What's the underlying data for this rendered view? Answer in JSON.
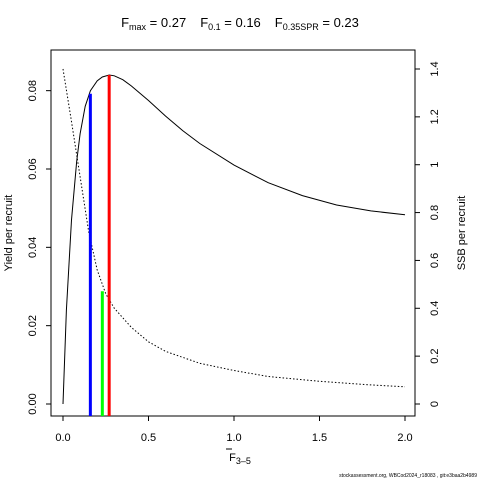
{
  "chart_data": {
    "type": "line",
    "title": {
      "fmax_label": "F",
      "fmax_sub": "max",
      "fmax_value": " = 0.27",
      "f01_label": "F",
      "f01_sub": "0.1",
      "f01_value": " = 0.16",
      "fspr_label": "F",
      "fspr_sub": "0.35SPR",
      "fspr_value": " = 0.23"
    },
    "xlabel": {
      "main": "F",
      "sub": "3–5"
    },
    "ylabel_left": "Yield per recruit",
    "ylabel_right": "SSB per recruit",
    "xlim": [
      0,
      2
    ],
    "ylim_left": [
      0,
      0.084
    ],
    "ylim_right": [
      0,
      1.4
    ],
    "x_ticks": [
      "0.0",
      "0.5",
      "1.0",
      "1.5",
      "2.0"
    ],
    "y_ticks_left": [
      "0.00",
      "0.02",
      "0.04",
      "0.06",
      "0.08"
    ],
    "y_ticks_right": [
      "0",
      "0.2",
      "0.4",
      "0.6",
      "0.8",
      "1",
      "1.2",
      "1.4"
    ],
    "series": [
      {
        "axis": "left",
        "style": "solid",
        "color": "#000000",
        "x": [
          0,
          0.02,
          0.05,
          0.08,
          0.1,
          0.13,
          0.16,
          0.2,
          0.23,
          0.27,
          0.3,
          0.35,
          0.4,
          0.5,
          0.6,
          0.7,
          0.8,
          1.0,
          1.2,
          1.4,
          1.6,
          1.8,
          2.0
        ],
        "y": [
          0,
          0.024,
          0.047,
          0.062,
          0.069,
          0.076,
          0.08,
          0.0825,
          0.0835,
          0.084,
          0.0838,
          0.0828,
          0.0812,
          0.0775,
          0.0735,
          0.0698,
          0.0665,
          0.061,
          0.0565,
          0.0532,
          0.0508,
          0.0493,
          0.0483
        ]
      },
      {
        "axis": "right",
        "style": "dotted",
        "color": "#000000",
        "x": [
          0,
          0.05,
          0.1,
          0.15,
          0.2,
          0.25,
          0.3,
          0.4,
          0.5,
          0.6,
          0.8,
          1.0,
          1.2,
          1.5,
          1.8,
          2.0
        ],
        "y": [
          1.4,
          1.18,
          0.95,
          0.72,
          0.56,
          0.46,
          0.4,
          0.32,
          0.26,
          0.22,
          0.17,
          0.14,
          0.115,
          0.095,
          0.08,
          0.072
        ]
      }
    ],
    "reference_lines": [
      {
        "x": 0.16,
        "y_top": 0.0792,
        "color": "#0000ff",
        "ref": "F0.1"
      },
      {
        "x": 0.27,
        "y_top": 0.084,
        "color": "#ff0000",
        "ref": "Fmax"
      },
      {
        "x": 0.23,
        "y_top": 0.0288,
        "color": "#00ff00",
        "ref": "F0.35SPR"
      }
    ],
    "grid": false,
    "legend": "none"
  },
  "footer": "stockassessment.org, WBCod2024_r18083 , git:e3baa2b4989"
}
